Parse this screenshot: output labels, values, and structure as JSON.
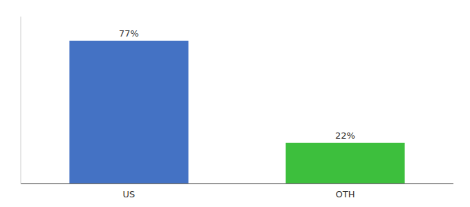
{
  "chart_data": {
    "type": "bar",
    "categories": [
      "US",
      "OTH"
    ],
    "values": [
      77,
      22
    ],
    "value_labels": [
      "77%",
      "22%"
    ],
    "colors": [
      "#4472c4",
      "#3dbf3d"
    ],
    "ylim": [
      0,
      90
    ],
    "data_labels": true,
    "tick_labels": "x"
  }
}
